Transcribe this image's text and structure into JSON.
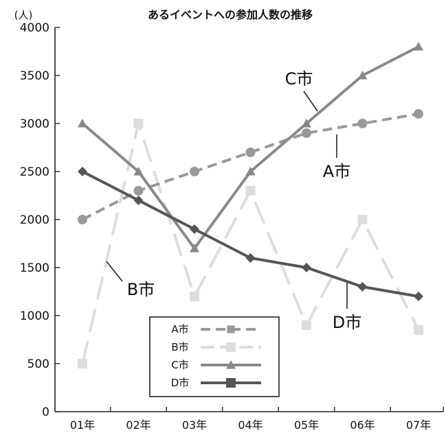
{
  "chart_data": {
    "type": "line",
    "title": "あるイベントへの参加人数の推移",
    "ylabel": "(人)",
    "xlabel": "",
    "categories": [
      "01年",
      "02年",
      "03年",
      "04年",
      "05年",
      "06年",
      "07年"
    ],
    "yticks": [
      "0",
      "500",
      "1000",
      "1500",
      "2000",
      "2500",
      "3000",
      "3500",
      "4000"
    ],
    "ylim": [
      0,
      4000
    ],
    "grid": false,
    "legend_position": "bottom-left",
    "series": [
      {
        "name": "A市",
        "values": [
          2000,
          2300,
          2500,
          2700,
          2900,
          3000,
          3100
        ],
        "color": "#999999",
        "dash": "dashed",
        "marker": "circle"
      },
      {
        "name": "B市",
        "values": [
          500,
          3000,
          1200,
          2300,
          900,
          2000,
          850
        ],
        "color": "#dddddd",
        "dash": "long-dashed",
        "marker": "square"
      },
      {
        "name": "C市",
        "values": [
          3000,
          2500,
          1700,
          2500,
          3000,
          3500,
          3800
        ],
        "color": "#888888",
        "dash": "solid",
        "marker": "triangle"
      },
      {
        "name": "D市",
        "values": [
          2500,
          2200,
          1900,
          1600,
          1500,
          1300,
          1200
        ],
        "color": "#555555",
        "dash": "solid",
        "marker": "diamond"
      }
    ],
    "legend": [
      {
        "label": "A市",
        "marker": "square-small"
      },
      {
        "label": "B市",
        "marker": "square"
      },
      {
        "label": "C市",
        "marker": "triangle"
      },
      {
        "label": "D市",
        "marker": "square"
      }
    ],
    "callouts": [
      {
        "series": "C市",
        "label": "C市"
      },
      {
        "series": "A市",
        "label": "A市"
      },
      {
        "series": "B市",
        "label": "B市"
      },
      {
        "series": "D市",
        "label": "D市"
      }
    ]
  }
}
